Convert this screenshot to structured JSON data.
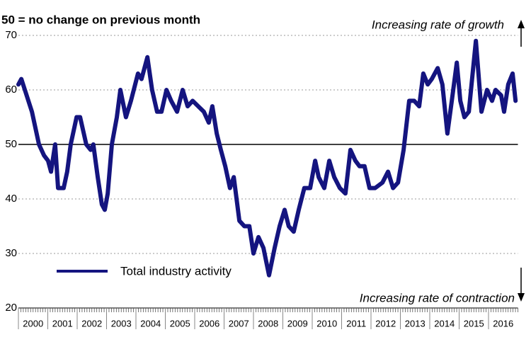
{
  "chart_data": {
    "type": "line",
    "title": "50 = no change on previous month",
    "annotations": [
      "Increasing rate of growth",
      "Increasing rate of contraction"
    ],
    "x": [
      2000.0,
      2000.1,
      2000.22,
      2000.46,
      2000.7,
      2000.87,
      2001.01,
      2001.11,
      2001.25,
      2001.35,
      2001.54,
      2001.66,
      2001.78,
      2001.98,
      2002.1,
      2002.31,
      2002.46,
      2002.55,
      2002.7,
      2002.84,
      2002.94,
      2003.04,
      2003.18,
      2003.35,
      2003.47,
      2003.66,
      2003.83,
      2004.07,
      2004.19,
      2004.39,
      2004.55,
      2004.72,
      2004.87,
      2005.04,
      2005.2,
      2005.4,
      2005.59,
      2005.76,
      2005.93,
      2006.12,
      2006.31,
      2006.48,
      2006.6,
      2006.75,
      2006.89,
      2007.04,
      2007.2,
      2007.33,
      2007.52,
      2007.69,
      2007.86,
      2008.0,
      2008.17,
      2008.34,
      2008.53,
      2008.72,
      2008.89,
      2009.06,
      2009.2,
      2009.37,
      2009.54,
      2009.73,
      2009.93,
      2010.1,
      2010.22,
      2010.41,
      2010.58,
      2010.75,
      2010.94,
      2011.13,
      2011.3,
      2011.47,
      2011.61,
      2011.78,
      2011.95,
      2012.14,
      2012.39,
      2012.58,
      2012.75,
      2012.92,
      2013.11,
      2013.3,
      2013.47,
      2013.64,
      2013.78,
      2013.93,
      2014.07,
      2014.27,
      2014.43,
      2014.6,
      2014.75,
      2014.92,
      2015.04,
      2015.18,
      2015.33,
      2015.57,
      2015.76,
      2015.95,
      2016.12,
      2016.24,
      2016.43,
      2016.53,
      2016.67,
      2016.82,
      2016.92
    ],
    "series": [
      {
        "name": "Total industry activity",
        "color": "#14147f",
        "values": [
          61,
          62,
          60,
          56,
          50,
          48,
          47,
          45,
          50,
          42,
          42,
          45,
          50,
          55,
          55,
          50,
          49,
          50,
          44,
          39,
          38,
          41,
          50,
          55,
          60,
          55,
          58,
          63,
          62,
          66,
          60,
          56,
          56,
          60,
          58,
          56,
          60,
          57,
          58,
          57,
          56,
          54,
          57,
          52,
          49,
          46,
          42,
          44,
          36,
          35,
          35,
          30,
          33,
          31,
          26,
          31,
          35,
          38,
          35,
          34,
          38,
          42,
          42,
          47,
          44,
          42,
          47,
          44,
          42,
          41,
          49,
          47,
          46,
          46,
          42,
          42,
          43,
          45,
          42,
          43,
          49,
          58,
          58,
          57,
          63,
          61,
          62,
          64,
          61,
          52,
          58,
          65,
          58,
          55,
          56,
          69,
          56,
          60,
          58,
          60,
          59,
          56,
          61,
          63,
          58
        ]
      }
    ],
    "xlim": [
      2000,
      2017
    ],
    "xticks": [
      2000,
      2001,
      2002,
      2003,
      2004,
      2005,
      2006,
      2007,
      2008,
      2009,
      2010,
      2011,
      2012,
      2013,
      2014,
      2015,
      2016
    ],
    "ylim": [
      20,
      70
    ],
    "yticks": [
      20,
      30,
      40,
      50,
      60,
      70
    ],
    "reference_line": 50,
    "grid": true,
    "legend": "bottom-left"
  }
}
